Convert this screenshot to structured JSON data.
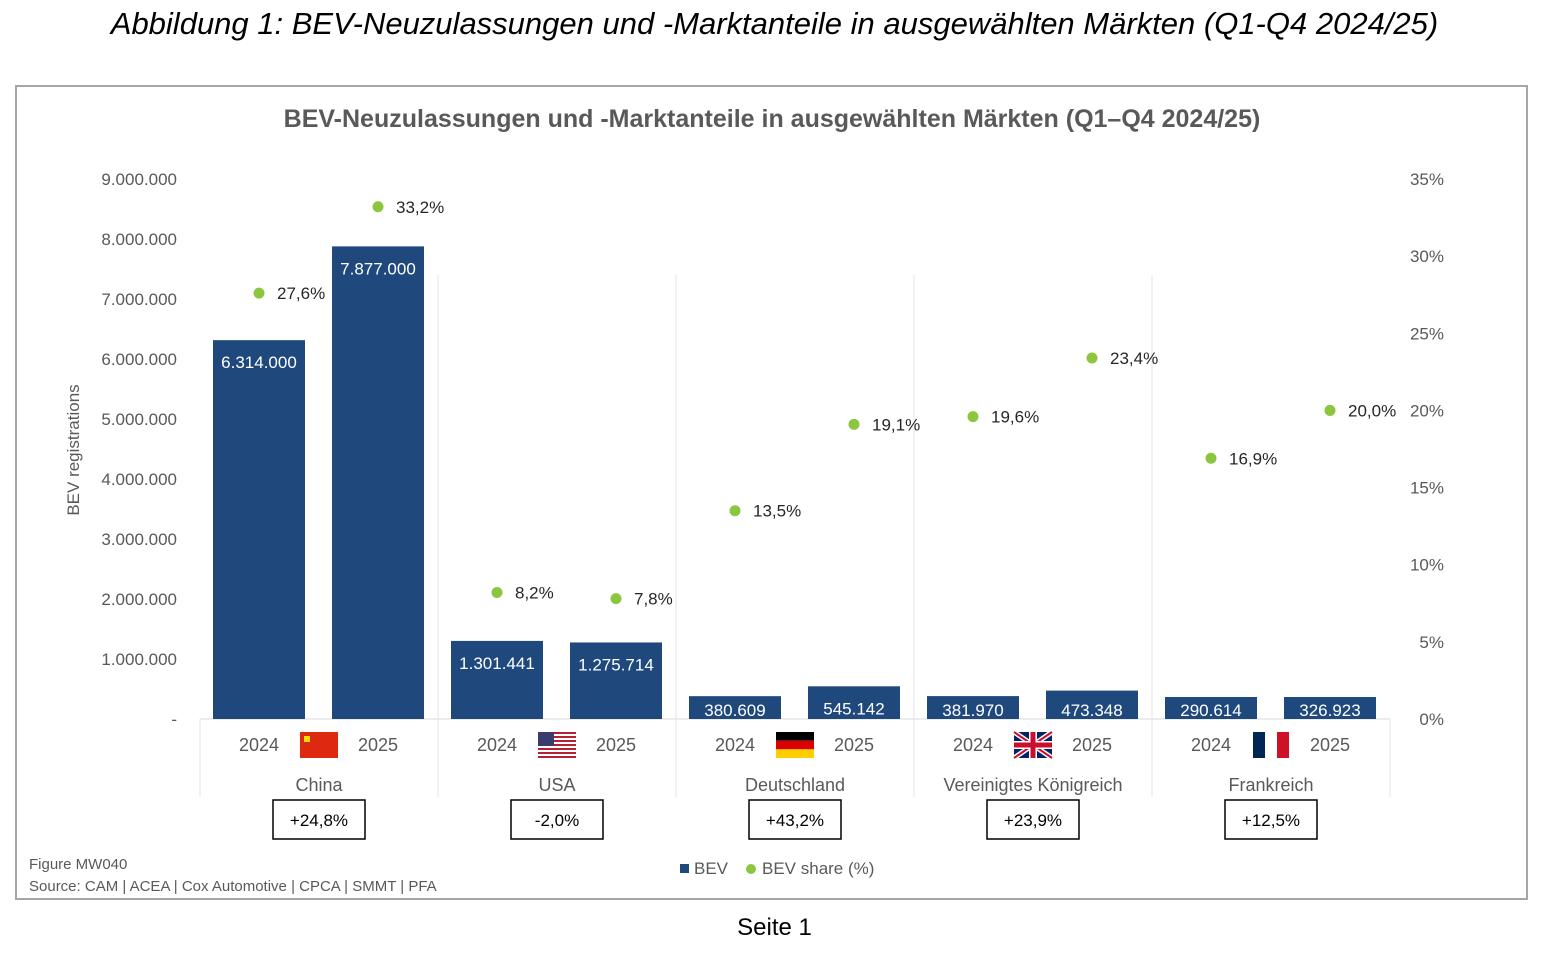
{
  "page_heading": "Abbildung 1: BEV-Neuzulassungen und -Marktanteile in ausgewählten Märkten (Q1-Q4 2024/25)",
  "page_footer": "Seite 1",
  "figure_id": "Figure MW040",
  "source": "Source: CAM  |  ACEA  |  Cox Automotive  |  CPCA  |  SMMT  |  PFA",
  "colors": {
    "bar": "#1f497d",
    "dot": "#8cc63f"
  },
  "chart_data": {
    "type": "bar",
    "title": "BEV-Neuzulassungen und -Marktanteile in ausgewählten Märkten (Q1–Q4 2024/25)",
    "ylabel": "BEV registrations",
    "ylim": [
      0,
      9000000
    ],
    "y2lim": [
      0,
      35
    ],
    "y_ticks": [
      "-",
      "1.000.000",
      "2.000.000",
      "3.000.000",
      "4.000.000",
      "5.000.000",
      "6.000.000",
      "7.000.000",
      "8.000.000",
      "9.000.000"
    ],
    "y2_ticks": [
      "0%",
      "5%",
      "10%",
      "15%",
      "20%",
      "25%",
      "30%",
      "35%"
    ],
    "legend": [
      "BEV",
      "BEV share (%)"
    ],
    "legend_position": "bottom",
    "groups": [
      {
        "country": "China",
        "flag": "cn",
        "years": [
          "2024",
          "2025"
        ],
        "bev": [
          6314000,
          7877000
        ],
        "bev_labels": [
          "6.314.000",
          "7.877.000"
        ],
        "share": [
          27.6,
          33.2
        ],
        "share_labels": [
          "27,6%",
          "33,2%"
        ],
        "change": "+24,8%"
      },
      {
        "country": "USA",
        "flag": "us",
        "years": [
          "2024",
          "2025"
        ],
        "bev": [
          1301441,
          1275714
        ],
        "bev_labels": [
          "1.301.441",
          "1.275.714"
        ],
        "share": [
          8.2,
          7.8
        ],
        "share_labels": [
          "8,2%",
          "7,8%"
        ],
        "change": "-2,0%"
      },
      {
        "country": "Deutschland",
        "flag": "de",
        "years": [
          "2024",
          "2025"
        ],
        "bev": [
          380609,
          545142
        ],
        "bev_labels": [
          "380.609",
          "545.142"
        ],
        "share": [
          13.5,
          19.1
        ],
        "share_labels": [
          "13,5%",
          "19,1%"
        ],
        "change": "+43,2%"
      },
      {
        "country": "Vereinigtes Königreich",
        "flag": "gb",
        "years": [
          "2024",
          "2025"
        ],
        "bev": [
          381970,
          473348
        ],
        "bev_labels": [
          "381.970",
          "473.348"
        ],
        "share": [
          19.6,
          23.4
        ],
        "share_labels": [
          "19,6%",
          "23,4%"
        ],
        "change": "+23,9%"
      },
      {
        "country": "Frankreich",
        "flag": "fr",
        "years": [
          "2024",
          "2025"
        ],
        "bev": [
          290614,
          326923
        ],
        "bev_labels": [
          "290.614",
          "326.923"
        ],
        "share": [
          16.9,
          20.0
        ],
        "share_labels": [
          "16,9%",
          "20,0%"
        ],
        "change": "+12,5%"
      }
    ]
  }
}
